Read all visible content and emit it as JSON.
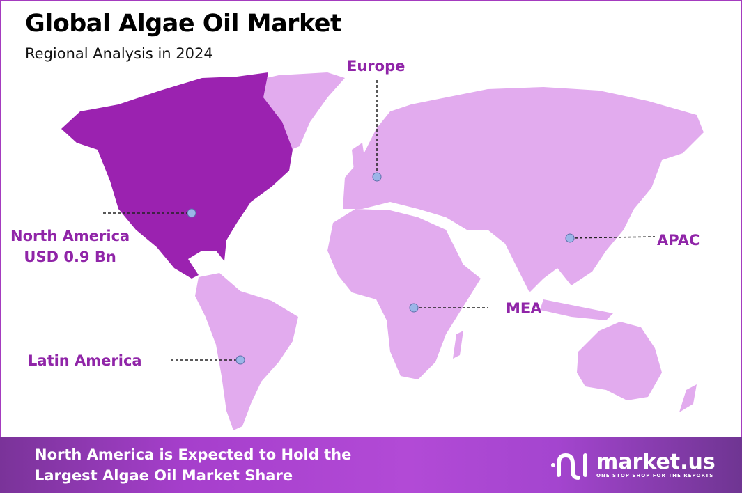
{
  "header": {
    "title": "Global Algae Oil Market",
    "subtitle": "Regional Analysis in 2024"
  },
  "colors": {
    "highlight": "#9b22b0",
    "region": "#e2abee",
    "label": "#9025a8",
    "marker": "#9bb5e8"
  },
  "regions": [
    {
      "name": "North America",
      "value": "USD 0.9 Bn",
      "highlighted": true
    },
    {
      "name": "Europe"
    },
    {
      "name": "APAC"
    },
    {
      "name": "MEA"
    },
    {
      "name": "Latin America"
    }
  ],
  "footer": {
    "line1": "North America is Expected to Hold the",
    "line2": "Largest Algae Oil Market Share"
  },
  "logo": {
    "name": "market.us",
    "tagline": "ONE STOP SHOP FOR THE REPORTS"
  }
}
